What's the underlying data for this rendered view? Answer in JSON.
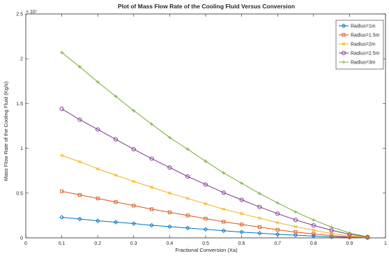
{
  "chart_data": {
    "type": "line",
    "title": "Plot of Mass Flow Rate of the Cooling Fluid Versus Conversion",
    "xlabel": "Fractional Conversion (Xa)",
    "ylabel": "Mass Flow Rate of the Cooling Fluid (Kg/s)",
    "y_exponent": "× 10⁷",
    "xlim": [
      0,
      1
    ],
    "ylim": [
      0,
      2.5
    ],
    "x_ticks": [
      "0",
      "0.1",
      "0.2",
      "0.3",
      "0.4",
      "0.5",
      "0.6",
      "0.7",
      "0.8",
      "0.9",
      "1"
    ],
    "y_ticks": [
      "0",
      "0.5",
      "1",
      "1.5",
      "2",
      "2.5"
    ],
    "grid": false,
    "legend_position": "top-right",
    "x": [
      0.1,
      0.15,
      0.2,
      0.25,
      0.3,
      0.35,
      0.4,
      0.45,
      0.5,
      0.55,
      0.6,
      0.65,
      0.7,
      0.75,
      0.8,
      0.85,
      0.9,
      0.95
    ],
    "series": [
      {
        "name": "Radius=1m",
        "color": "#0072bd",
        "marker": "diamond",
        "values": [
          0.23,
          0.21,
          0.19,
          0.175,
          0.16,
          0.14,
          0.125,
          0.11,
          0.095,
          0.08,
          0.065,
          0.052,
          0.04,
          0.03,
          0.02,
          0.012,
          0.006,
          0.002
        ]
      },
      {
        "name": "Radius=1.5m",
        "color": "#d95319",
        "marker": "square",
        "values": [
          0.52,
          0.48,
          0.44,
          0.4,
          0.36,
          0.32,
          0.285,
          0.25,
          0.215,
          0.18,
          0.15,
          0.12,
          0.09,
          0.065,
          0.045,
          0.025,
          0.012,
          0.003
        ]
      },
      {
        "name": "Radius=2m",
        "color": "#edb120",
        "marker": "x",
        "values": [
          0.92,
          0.85,
          0.77,
          0.7,
          0.63,
          0.565,
          0.5,
          0.44,
          0.38,
          0.32,
          0.27,
          0.22,
          0.17,
          0.125,
          0.085,
          0.05,
          0.022,
          0.005
        ]
      },
      {
        "name": "Radius=2.5m",
        "color": "#7e2f8e",
        "marker": "circle",
        "values": [
          1.44,
          1.32,
          1.21,
          1.1,
          0.99,
          0.885,
          0.785,
          0.685,
          0.595,
          0.505,
          0.425,
          0.345,
          0.27,
          0.2,
          0.14,
          0.085,
          0.04,
          0.01
        ]
      },
      {
        "name": "Radius=3m",
        "color": "#77ac30",
        "marker": "plus",
        "values": [
          2.07,
          1.91,
          1.74,
          1.58,
          1.42,
          1.27,
          1.12,
          0.99,
          0.855,
          0.725,
          0.61,
          0.495,
          0.39,
          0.29,
          0.2,
          0.12,
          0.055,
          0.012
        ]
      }
    ]
  }
}
